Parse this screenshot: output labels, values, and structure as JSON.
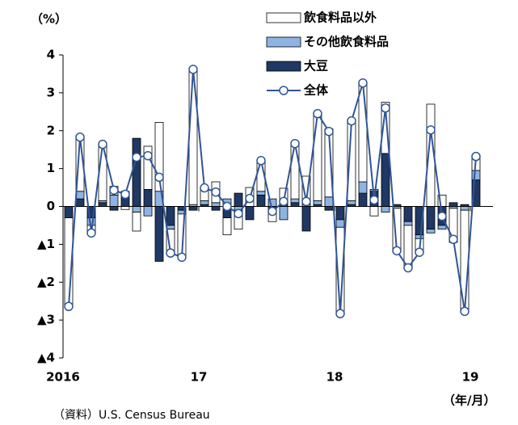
{
  "chart_data": {
    "type": "bar+line",
    "y_unit": "（%）",
    "x_unit": "（年/月）",
    "source": "（資料）U.S. Census Bureau",
    "categories": [
      "2016",
      null,
      null,
      null,
      null,
      null,
      null,
      null,
      null,
      null,
      null,
      null,
      "17",
      null,
      null,
      null,
      null,
      null,
      null,
      null,
      null,
      null,
      null,
      null,
      "18",
      null,
      null,
      null,
      null,
      null,
      null,
      null,
      null,
      null,
      null,
      null,
      "19"
    ],
    "ylim": [
      -4,
      4
    ],
    "yticks": [
      {
        "value": -4,
        "label": "▲4"
      },
      {
        "value": -3,
        "label": "▲3"
      },
      {
        "value": -2,
        "label": "▲2"
      },
      {
        "value": -1,
        "label": "▲1"
      },
      0,
      1,
      2,
      3,
      4
    ],
    "series": [
      {
        "name": "飲食料品以外",
        "type": "bar",
        "color": "#ffffff",
        "values": [
          -2.34,
          1.43,
          -0.2,
          1.49,
          0.23,
          -0.08,
          -0.5,
          1.14,
          1.82,
          -0.63,
          -1.14,
          3.6,
          0.34,
          0.55,
          -0.45,
          -0.5,
          0.5,
          0.8,
          -0.3,
          0.43,
          1.5,
          0.75,
          2.3,
          1.8,
          -2.3,
          2.1,
          2.6,
          -0.25,
          1.35,
          -1.15,
          -1.1,
          -0.35,
          2.7,
          0.3,
          -0.9,
          -2.7,
          0.4
        ]
      },
      {
        "name": "その他飲食料品",
        "type": "bar",
        "color": "#8db4e2",
        "values": [
          0,
          0.2,
          -0.2,
          0.05,
          0.3,
          0.1,
          -0.15,
          -0.25,
          0.4,
          -0.1,
          -0.1,
          0.05,
          0.1,
          0.1,
          0.2,
          -0.1,
          0,
          0.1,
          0.2,
          -0.35,
          0.1,
          0.05,
          0.1,
          0.25,
          -0.2,
          0.1,
          0.3,
          0.05,
          -0.15,
          -0.05,
          -0.1,
          -0.1,
          -0.1,
          -0.1,
          -0.05,
          -0.1,
          0.25
        ]
      },
      {
        "name": "大豆",
        "type": "bar",
        "color": "#1f3864",
        "values": [
          -0.3,
          0.2,
          -0.3,
          0.1,
          -0.1,
          0.3,
          1.8,
          0.45,
          -1.45,
          -0.5,
          -0.1,
          -0.1,
          0.05,
          -0.1,
          -0.3,
          0.35,
          -0.35,
          0.3,
          -0.1,
          0.05,
          0.1,
          -0.65,
          0.05,
          -0.1,
          -0.35,
          0.05,
          0.35,
          0.4,
          1.4,
          0.05,
          -0.4,
          -0.75,
          -0.6,
          -0.5,
          0.1,
          0.05,
          0.7
        ]
      },
      {
        "name": "全体",
        "type": "line",
        "color": "#2f5597",
        "values": [
          -2.64,
          1.83,
          -0.7,
          1.64,
          0.43,
          0.32,
          1.3,
          1.34,
          0.77,
          -1.23,
          -1.34,
          3.62,
          0.49,
          0.38,
          0,
          -0.19,
          0.21,
          1.21,
          -0.13,
          0.13,
          1.66,
          0.13,
          2.45,
          1.98,
          -2.83,
          2.26,
          3.26,
          0.17,
          2.6,
          -1.17,
          -1.62,
          -1.21,
          2.02,
          -0.26,
          -0.87,
          -2.77,
          1.32
        ]
      }
    ]
  }
}
